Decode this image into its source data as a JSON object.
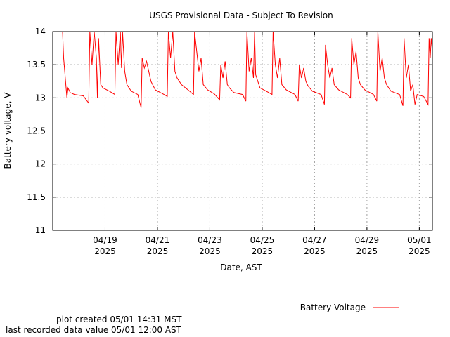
{
  "chart_data": {
    "type": "line",
    "title": "USGS Provisional Data - Subject To Revision",
    "xlabel": "Date, AST",
    "ylabel": "Battery voltage, V",
    "ylim": [
      11,
      14
    ],
    "xlim": [
      "2025-04-17 00:00",
      "2025-05-01 12:00"
    ],
    "yticks": [
      "11",
      "11.5",
      "12",
      "12.5",
      "13",
      "13.5",
      "14"
    ],
    "xticks": [
      {
        "date": "2025-04-19",
        "label": "04/19",
        "year": "2025"
      },
      {
        "date": "2025-04-21",
        "label": "04/21",
        "year": "2025"
      },
      {
        "date": "2025-04-23",
        "label": "04/23",
        "year": "2025"
      },
      {
        "date": "2025-04-25",
        "label": "04/25",
        "year": "2025"
      },
      {
        "date": "2025-04-27",
        "label": "04/27",
        "year": "2025"
      },
      {
        "date": "2025-04-29",
        "label": "04/29",
        "year": "2025"
      },
      {
        "date": "2025-05-01",
        "label": "05/01",
        "year": "2025"
      }
    ],
    "grid": true,
    "legend_position": "bottom-right",
    "series": [
      {
        "name": "Battery Voltage",
        "color": "#ff0000",
        "points": [
          [
            "2025-04-17 09:00",
            14.0
          ],
          [
            "2025-04-17 10:00",
            13.6
          ],
          [
            "2025-04-17 11:00",
            13.4
          ],
          [
            "2025-04-17 12:00",
            13.2
          ],
          [
            "2025-04-17 13:00",
            13.0
          ],
          [
            "2025-04-17 14:00",
            13.15
          ],
          [
            "2025-04-17 16:00",
            13.08
          ],
          [
            "2025-04-17 20:00",
            13.05
          ],
          [
            "2025-04-18 04:00",
            13.03
          ],
          [
            "2025-04-18 09:00",
            12.92
          ],
          [
            "2025-04-18 10:00",
            14.0
          ],
          [
            "2025-04-18 12:00",
            13.5
          ],
          [
            "2025-04-18 14:00",
            14.0
          ],
          [
            "2025-04-18 16:00",
            13.6
          ],
          [
            "2025-04-18 17:00",
            13.0
          ],
          [
            "2025-04-18 18:00",
            13.9
          ],
          [
            "2025-04-18 20:00",
            13.2
          ],
          [
            "2025-04-18 22:00",
            13.15
          ],
          [
            "2025-04-19 04:00",
            13.1
          ],
          [
            "2025-04-19 09:00",
            13.05
          ],
          [
            "2025-04-19 10:00",
            14.0
          ],
          [
            "2025-04-19 12:00",
            13.5
          ],
          [
            "2025-04-19 14:00",
            14.0
          ],
          [
            "2025-04-19 15:00",
            13.45
          ],
          [
            "2025-04-19 16:00",
            14.0
          ],
          [
            "2025-04-19 18:00",
            13.4
          ],
          [
            "2025-04-19 20:00",
            13.2
          ],
          [
            "2025-04-20 00:00",
            13.1
          ],
          [
            "2025-04-20 06:00",
            13.05
          ],
          [
            "2025-04-20 09:00",
            12.85
          ],
          [
            "2025-04-20 10:00",
            13.6
          ],
          [
            "2025-04-20 12:00",
            13.45
          ],
          [
            "2025-04-20 14:00",
            13.55
          ],
          [
            "2025-04-20 16:00",
            13.4
          ],
          [
            "2025-04-20 18:00",
            13.25
          ],
          [
            "2025-04-20 22:00",
            13.12
          ],
          [
            "2025-04-21 06:00",
            13.05
          ],
          [
            "2025-04-21 09:00",
            13.02
          ],
          [
            "2025-04-21 10:00",
            14.0
          ],
          [
            "2025-04-21 12:00",
            13.6
          ],
          [
            "2025-04-21 14:00",
            14.0
          ],
          [
            "2025-04-21 16:00",
            13.4
          ],
          [
            "2025-04-21 18:00",
            13.3
          ],
          [
            "2025-04-21 22:00",
            13.2
          ],
          [
            "2025-04-22 04:00",
            13.12
          ],
          [
            "2025-04-22 09:00",
            13.05
          ],
          [
            "2025-04-22 10:00",
            14.0
          ],
          [
            "2025-04-22 12:00",
            13.7
          ],
          [
            "2025-04-22 14:00",
            13.4
          ],
          [
            "2025-04-22 16:00",
            13.6
          ],
          [
            "2025-04-22 18:00",
            13.2
          ],
          [
            "2025-04-22 22:00",
            13.12
          ],
          [
            "2025-04-23 04:00",
            13.06
          ],
          [
            "2025-04-23 09:00",
            12.97
          ],
          [
            "2025-04-23 10:00",
            13.5
          ],
          [
            "2025-04-23 12:00",
            13.3
          ],
          [
            "2025-04-23 14:00",
            13.55
          ],
          [
            "2025-04-23 16:00",
            13.2
          ],
          [
            "2025-04-23 18:00",
            13.15
          ],
          [
            "2025-04-23 22:00",
            13.08
          ],
          [
            "2025-04-24 06:00",
            13.05
          ],
          [
            "2025-04-24 09:00",
            12.95
          ],
          [
            "2025-04-24 10:00",
            14.0
          ],
          [
            "2025-04-24 12:00",
            13.4
          ],
          [
            "2025-04-24 14:00",
            13.6
          ],
          [
            "2025-04-24 16:00",
            13.3
          ],
          [
            "2025-04-24 17:00",
            14.0
          ],
          [
            "2025-04-24 18:00",
            13.35
          ],
          [
            "2025-04-24 22:00",
            13.15
          ],
          [
            "2025-04-25 06:00",
            13.08
          ],
          [
            "2025-04-25 09:00",
            13.05
          ],
          [
            "2025-04-25 10:00",
            14.0
          ],
          [
            "2025-04-25 12:00",
            13.5
          ],
          [
            "2025-04-25 14:00",
            13.3
          ],
          [
            "2025-04-25 16:00",
            13.6
          ],
          [
            "2025-04-25 18:00",
            13.2
          ],
          [
            "2025-04-25 22:00",
            13.12
          ],
          [
            "2025-04-26 06:00",
            13.05
          ],
          [
            "2025-04-26 09:00",
            12.95
          ],
          [
            "2025-04-26 10:00",
            13.5
          ],
          [
            "2025-04-26 12:00",
            13.3
          ],
          [
            "2025-04-26 14:00",
            13.45
          ],
          [
            "2025-04-26 16:00",
            13.25
          ],
          [
            "2025-04-26 18:00",
            13.18
          ],
          [
            "2025-04-26 22:00",
            13.1
          ],
          [
            "2025-04-27 06:00",
            13.05
          ],
          [
            "2025-04-27 09:00",
            12.9
          ],
          [
            "2025-04-27 10:00",
            13.8
          ],
          [
            "2025-04-27 12:00",
            13.5
          ],
          [
            "2025-04-27 14:00",
            13.3
          ],
          [
            "2025-04-27 16:00",
            13.45
          ],
          [
            "2025-04-27 18:00",
            13.2
          ],
          [
            "2025-04-27 22:00",
            13.12
          ],
          [
            "2025-04-28 06:00",
            13.05
          ],
          [
            "2025-04-28 09:00",
            13.0
          ],
          [
            "2025-04-28 10:00",
            13.9
          ],
          [
            "2025-04-28 12:00",
            13.5
          ],
          [
            "2025-04-28 14:00",
            13.7
          ],
          [
            "2025-04-28 16:00",
            13.3
          ],
          [
            "2025-04-28 18:00",
            13.2
          ],
          [
            "2025-04-28 22:00",
            13.12
          ],
          [
            "2025-04-29 06:00",
            13.05
          ],
          [
            "2025-04-29 09:00",
            12.95
          ],
          [
            "2025-04-29 10:00",
            14.0
          ],
          [
            "2025-04-29 12:00",
            13.4
          ],
          [
            "2025-04-29 14:00",
            13.6
          ],
          [
            "2025-04-29 16:00",
            13.3
          ],
          [
            "2025-04-29 18:00",
            13.2
          ],
          [
            "2025-04-29 22:00",
            13.1
          ],
          [
            "2025-04-30 06:00",
            13.05
          ],
          [
            "2025-04-30 09:00",
            12.88
          ],
          [
            "2025-04-30 10:00",
            13.9
          ],
          [
            "2025-04-30 12:00",
            13.3
          ],
          [
            "2025-04-30 14:00",
            13.5
          ],
          [
            "2025-04-30 16:00",
            13.1
          ],
          [
            "2025-04-30 18:00",
            13.2
          ],
          [
            "2025-04-30 20:00",
            12.9
          ],
          [
            "2025-04-30 22:00",
            13.05
          ],
          [
            "2025-05-01 04:00",
            13.02
          ],
          [
            "2025-05-01 08:00",
            12.9
          ],
          [
            "2025-05-01 09:00",
            13.9
          ],
          [
            "2025-05-01 10:00",
            13.6
          ],
          [
            "2025-05-01 11:00",
            13.9
          ],
          [
            "2025-05-01 12:00",
            13.7
          ]
        ]
      }
    ]
  },
  "legend": {
    "label": "Battery Voltage"
  },
  "footer": {
    "created": "plot created 05/01 14:31 MST",
    "last_value": "last recorded data value 05/01 12:00 AST"
  }
}
